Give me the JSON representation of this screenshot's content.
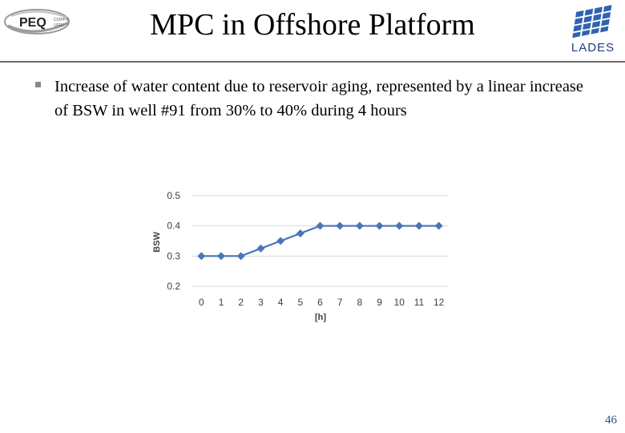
{
  "slide": {
    "title": "MPC in Offshore Platform",
    "bullet_text": "Increase of water content due to reservoir aging, represented by a linear increase of BSW in well #91 from 30% to 40% during 4 hours",
    "page_number": "46"
  },
  "logos": {
    "left": {
      "name": "PEQ",
      "text_main": "PEQ",
      "text_small_1": "COPPE",
      "text_small_2": "UFRJ"
    },
    "right": {
      "name": "LADES",
      "text": "LADES"
    }
  },
  "colors": {
    "series": "#4a76b8",
    "grid": "#d9d9d9",
    "page_number": "#2d4f8e",
    "bullet": "#8a8a8a"
  },
  "chart_data": {
    "type": "line",
    "xlabel": "[h]",
    "ylabel": "BSW",
    "x": [
      0,
      1,
      2,
      3,
      4,
      5,
      6,
      7,
      8,
      9,
      10,
      11,
      12
    ],
    "series": [
      {
        "values": [
          0.3,
          0.3,
          0.3,
          0.325,
          0.35,
          0.375,
          0.4,
          0.4,
          0.4,
          0.4,
          0.4,
          0.4,
          0.4
        ]
      }
    ],
    "ylim": [
      0.2,
      0.5
    ],
    "yticks": [
      "0.2",
      "0.3",
      "0.4",
      "0.5"
    ],
    "grid": true,
    "legend": "none",
    "marker": "diamond"
  }
}
